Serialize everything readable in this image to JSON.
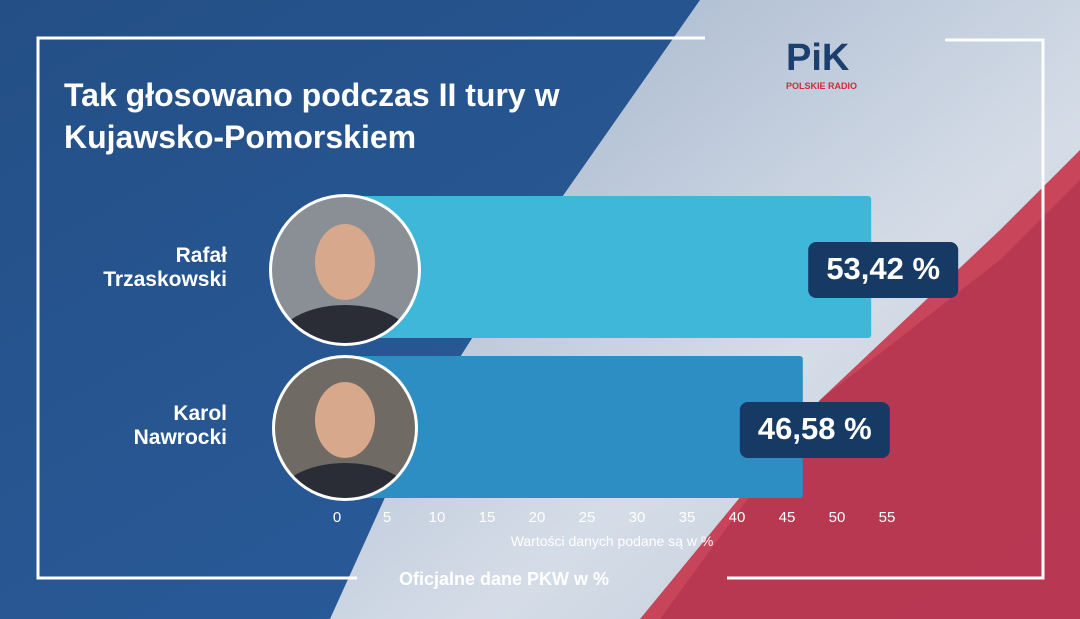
{
  "chart_data": {
    "type": "bar",
    "orientation": "horizontal",
    "title": "Tak głosowano podczas II tury w Kujawsko-Pomorskiem",
    "categories": [
      "Rafał Trzaskowski",
      "Karol Nawrocki"
    ],
    "values": [
      53.42,
      46.58
    ],
    "value_labels": [
      "53,42 %",
      "46,58 %"
    ],
    "colors": [
      "#3fb7d9",
      "#2d8ec3"
    ],
    "xlim": [
      0,
      55
    ],
    "xticks": [
      0,
      5,
      10,
      15,
      20,
      25,
      30,
      35,
      40,
      45,
      50,
      55
    ],
    "axis_note": "Wartości danych podane są w %",
    "footer": "Oficjalne dane PKW  w %",
    "logo": {
      "mark": "PiK",
      "text": "POLSKIE RADIO"
    }
  }
}
